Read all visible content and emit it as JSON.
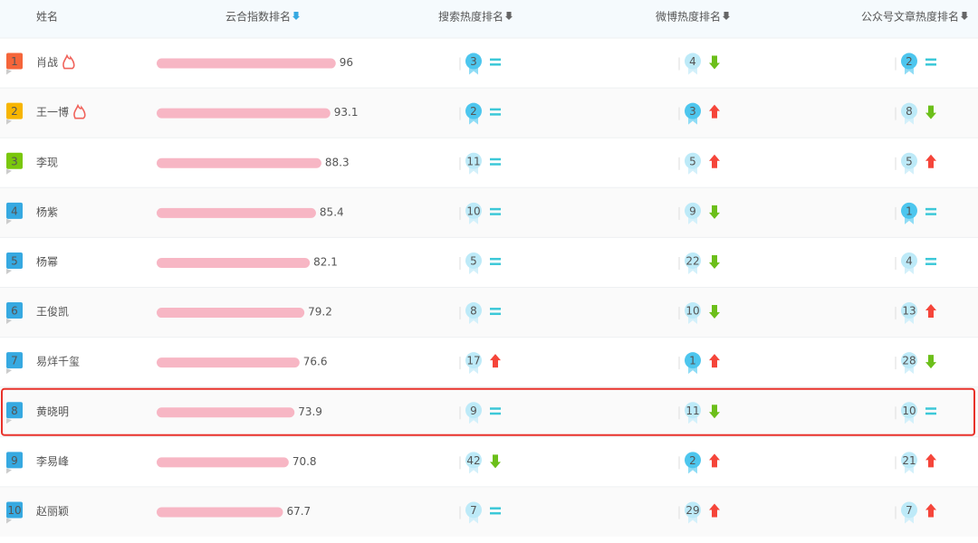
{
  "header": [
    "姓名",
    "云合指数排名",
    "搜索热度排名",
    "微博热度排名",
    "公众号文章热度排名"
  ],
  "rows": [
    {
      "rank": 1,
      "name": "肖战",
      "hot": true,
      "score": 96,
      "search_rank": 3,
      "search_trend": "same",
      "weibo_rank": 4,
      "weibo_trend": "down",
      "wechat_rank": 2,
      "wechat_trend": "same"
    },
    {
      "rank": 2,
      "name": "王一博",
      "hot": true,
      "score": 93.1,
      "search_rank": 2,
      "search_trend": "same",
      "weibo_rank": 3,
      "weibo_trend": "up",
      "wechat_rank": 8,
      "wechat_trend": "down"
    },
    {
      "rank": 3,
      "name": "李现",
      "score": 88.3,
      "search_rank": 11,
      "search_trend": "same",
      "weibo_rank": 5,
      "weibo_trend": "up",
      "wechat_rank": 5,
      "wechat_trend": "up"
    },
    {
      "rank": 4,
      "name": "杨紫",
      "score": 85.4,
      "search_rank": 10,
      "search_trend": "same",
      "weibo_rank": 9,
      "weibo_trend": "down",
      "wechat_rank": 1,
      "wechat_trend": "same"
    },
    {
      "rank": 5,
      "name": "杨幂",
      "score": 82.1,
      "search_rank": 5,
      "search_trend": "same",
      "weibo_rank": 22,
      "weibo_trend": "down",
      "wechat_rank": 4,
      "wechat_trend": "same"
    },
    {
      "rank": 6,
      "name": "王俊凯",
      "score": 79.2,
      "search_rank": 8,
      "search_trend": "same",
      "weibo_rank": 10,
      "weibo_trend": "down",
      "wechat_rank": 13,
      "wechat_trend": "up"
    },
    {
      "rank": 7,
      "name": "易烊千玺",
      "score": 76.6,
      "search_rank": 17,
      "search_trend": "up",
      "weibo_rank": 1,
      "weibo_trend": "up",
      "wechat_rank": 28,
      "wechat_trend": "down"
    },
    {
      "rank": 8,
      "name": "黄晓明",
      "highlight": true,
      "score": 73.9,
      "search_rank": 9,
      "search_trend": "same",
      "weibo_rank": 11,
      "weibo_trend": "down",
      "wechat_rank": 10,
      "wechat_trend": "same"
    },
    {
      "rank": 9,
      "name": "李易峰",
      "score": 70.8,
      "search_rank": 42,
      "search_trend": "down",
      "weibo_rank": 2,
      "weibo_trend": "up",
      "wechat_rank": 21,
      "wechat_trend": "up"
    },
    {
      "rank": 10,
      "name": "赵丽颖",
      "score": 67.7,
      "search_rank": 7,
      "search_trend": "same",
      "weibo_rank": 29,
      "weibo_trend": "up",
      "wechat_rank": 7,
      "wechat_trend": "up"
    }
  ]
}
